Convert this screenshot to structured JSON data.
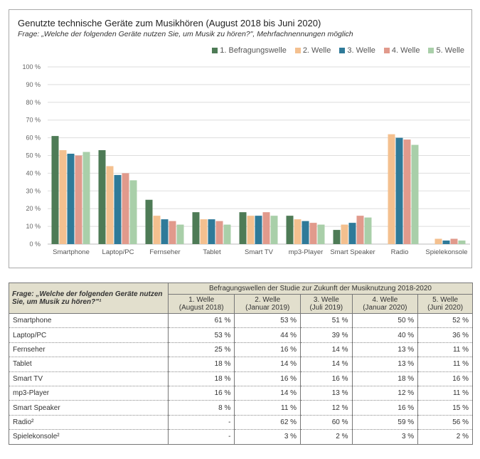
{
  "chart_data": {
    "type": "bar",
    "title": "Genutzte technische Geräte zum Musikhören (August 2018 bis Juni 2020)",
    "subtitle": "Frage: „Welche der folgenden Geräte nutzen Sie, um Musik zu hören?\", Mehrfachnennungen möglich",
    "categories": [
      "Smartphone",
      "Laptop/PC",
      "Fernseher",
      "Tablet",
      "Smart TV",
      "mp3-Player",
      "Smart Speaker",
      "Radio",
      "Spielekonsole"
    ],
    "series": [
      {
        "name": "1. Befragungswelle",
        "color": "#4e7b56",
        "values": [
          61,
          53,
          25,
          18,
          18,
          16,
          8,
          null,
          null
        ]
      },
      {
        "name": "2. Welle",
        "color": "#f4c08f",
        "values": [
          53,
          44,
          16,
          14,
          16,
          14,
          11,
          62,
          3
        ]
      },
      {
        "name": "3. Welle",
        "color": "#2f7a99",
        "values": [
          51,
          39,
          14,
          14,
          16,
          13,
          12,
          60,
          2
        ]
      },
      {
        "name": "4. Welle",
        "color": "#e19a8c",
        "values": [
          50,
          40,
          13,
          13,
          18,
          12,
          16,
          59,
          3
        ]
      },
      {
        "name": "5. Welle",
        "color": "#a9cfa9",
        "values": [
          52,
          36,
          11,
          11,
          16,
          11,
          15,
          56,
          2
        ]
      }
    ],
    "ylim": [
      0,
      100
    ],
    "yticks": [
      "0 %",
      "10 %",
      "20 %",
      "30 %",
      "40 %",
      "50 %",
      "60 %",
      "70 %",
      "80 %",
      "90 %",
      "100 %"
    ],
    "grid": true,
    "legend": "top-right"
  },
  "table": {
    "question": "Frage: „Welche der folgenden Geräte nutzen Sie, um Musik zu hören?\"¹",
    "group_header": "Befragungswellen der Studie zur Zukunft der Musiknutzung 2018-2020",
    "columns": [
      [
        "1. Welle",
        "(August 2018)"
      ],
      [
        "2. Welle",
        "(Januar 2019)"
      ],
      [
        "3. Welle",
        "(Juli 2019)"
      ],
      [
        "4. Welle",
        "(Januar 2020)"
      ],
      [
        "5. Welle",
        "(Juni 2020)"
      ]
    ],
    "rows": [
      [
        "Smartphone",
        "61 %",
        "53 %",
        "51 %",
        "50 %",
        "52 %"
      ],
      [
        "Laptop/PC",
        "53 %",
        "44 %",
        "39 %",
        "40 %",
        "36 %"
      ],
      [
        "Fernseher",
        "25 %",
        "16 %",
        "14 %",
        "13 %",
        "11 %"
      ],
      [
        "Tablet",
        "18 %",
        "14 %",
        "14 %",
        "13 %",
        "11 %"
      ],
      [
        "Smart TV",
        "18 %",
        "16 %",
        "16 %",
        "18 %",
        "16 %"
      ],
      [
        "mp3-Player",
        "16 %",
        "14 %",
        "13 %",
        "12 %",
        "11 %"
      ],
      [
        "Smart Speaker",
        "8 %",
        "11 %",
        "12 %",
        "16 %",
        "15 %"
      ],
      [
        "Radio²",
        "-",
        "62 %",
        "60 %",
        "59 %",
        "56 %"
      ],
      [
        "Spielekonsole²",
        "-",
        "3 %",
        "2 %",
        "3 %",
        "2 %"
      ]
    ]
  }
}
